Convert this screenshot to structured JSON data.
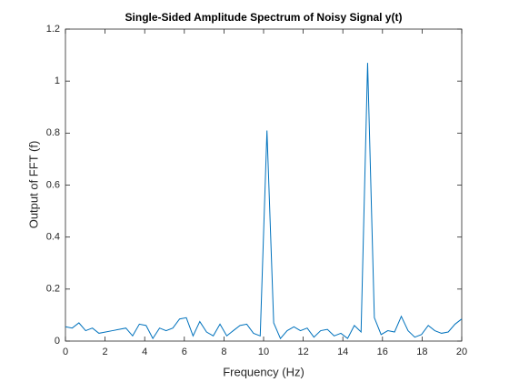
{
  "chart_data": {
    "type": "line",
    "title": "Single-Sided Amplitude Spectrum of Noisy Signal y(t)",
    "xlabel": "Frequency (Hz)",
    "ylabel": "Output of FFT (f)",
    "x": [
      0,
      0.34,
      0.68,
      1.02,
      1.36,
      1.69,
      2.03,
      2.37,
      2.71,
      3.05,
      3.39,
      3.73,
      4.07,
      4.41,
      4.75,
      5.08,
      5.42,
      5.76,
      6.1,
      6.44,
      6.78,
      7.12,
      7.46,
      7.8,
      8.14,
      8.47,
      8.81,
      9.15,
      9.49,
      9.83,
      10.17,
      10.51,
      10.85,
      11.19,
      11.53,
      11.86,
      12.2,
      12.54,
      12.88,
      13.22,
      13.56,
      13.9,
      14.24,
      14.58,
      14.92,
      15.25,
      15.59,
      15.93,
      16.27,
      16.61,
      16.95,
      17.29,
      17.63,
      17.97,
      18.31,
      18.64,
      18.98,
      19.32,
      19.66,
      20
    ],
    "series": [
      {
        "color": "#0072bd",
        "values": [
          0.055,
          0.05,
          0.07,
          0.04,
          0.05,
          0.03,
          0.035,
          0.04,
          0.045,
          0.05,
          0.02,
          0.065,
          0.06,
          0.01,
          0.05,
          0.04,
          0.05,
          0.085,
          0.09,
          0.02,
          0.075,
          0.035,
          0.02,
          0.065,
          0.02,
          0.04,
          0.06,
          0.065,
          0.03,
          0.02,
          0.81,
          0.07,
          0.01,
          0.04,
          0.055,
          0.04,
          0.05,
          0.015,
          0.04,
          0.045,
          0.02,
          0.03,
          0.01,
          0.06,
          0.035,
          1.07,
          0.09,
          0.025,
          0.04,
          0.035,
          0.095,
          0.04,
          0.015,
          0.025,
          0.06,
          0.04,
          0.03,
          0.035,
          0.065,
          0.085
        ]
      }
    ],
    "xlim": [
      0,
      20
    ],
    "xticks": [
      0,
      2,
      4,
      6,
      8,
      10,
      12,
      14,
      16,
      18,
      20
    ],
    "ylim": [
      0,
      1.2
    ],
    "yticks": [
      0,
      0.2,
      0.4,
      0.6,
      0.8,
      1,
      1.2
    ],
    "grid": false
  }
}
